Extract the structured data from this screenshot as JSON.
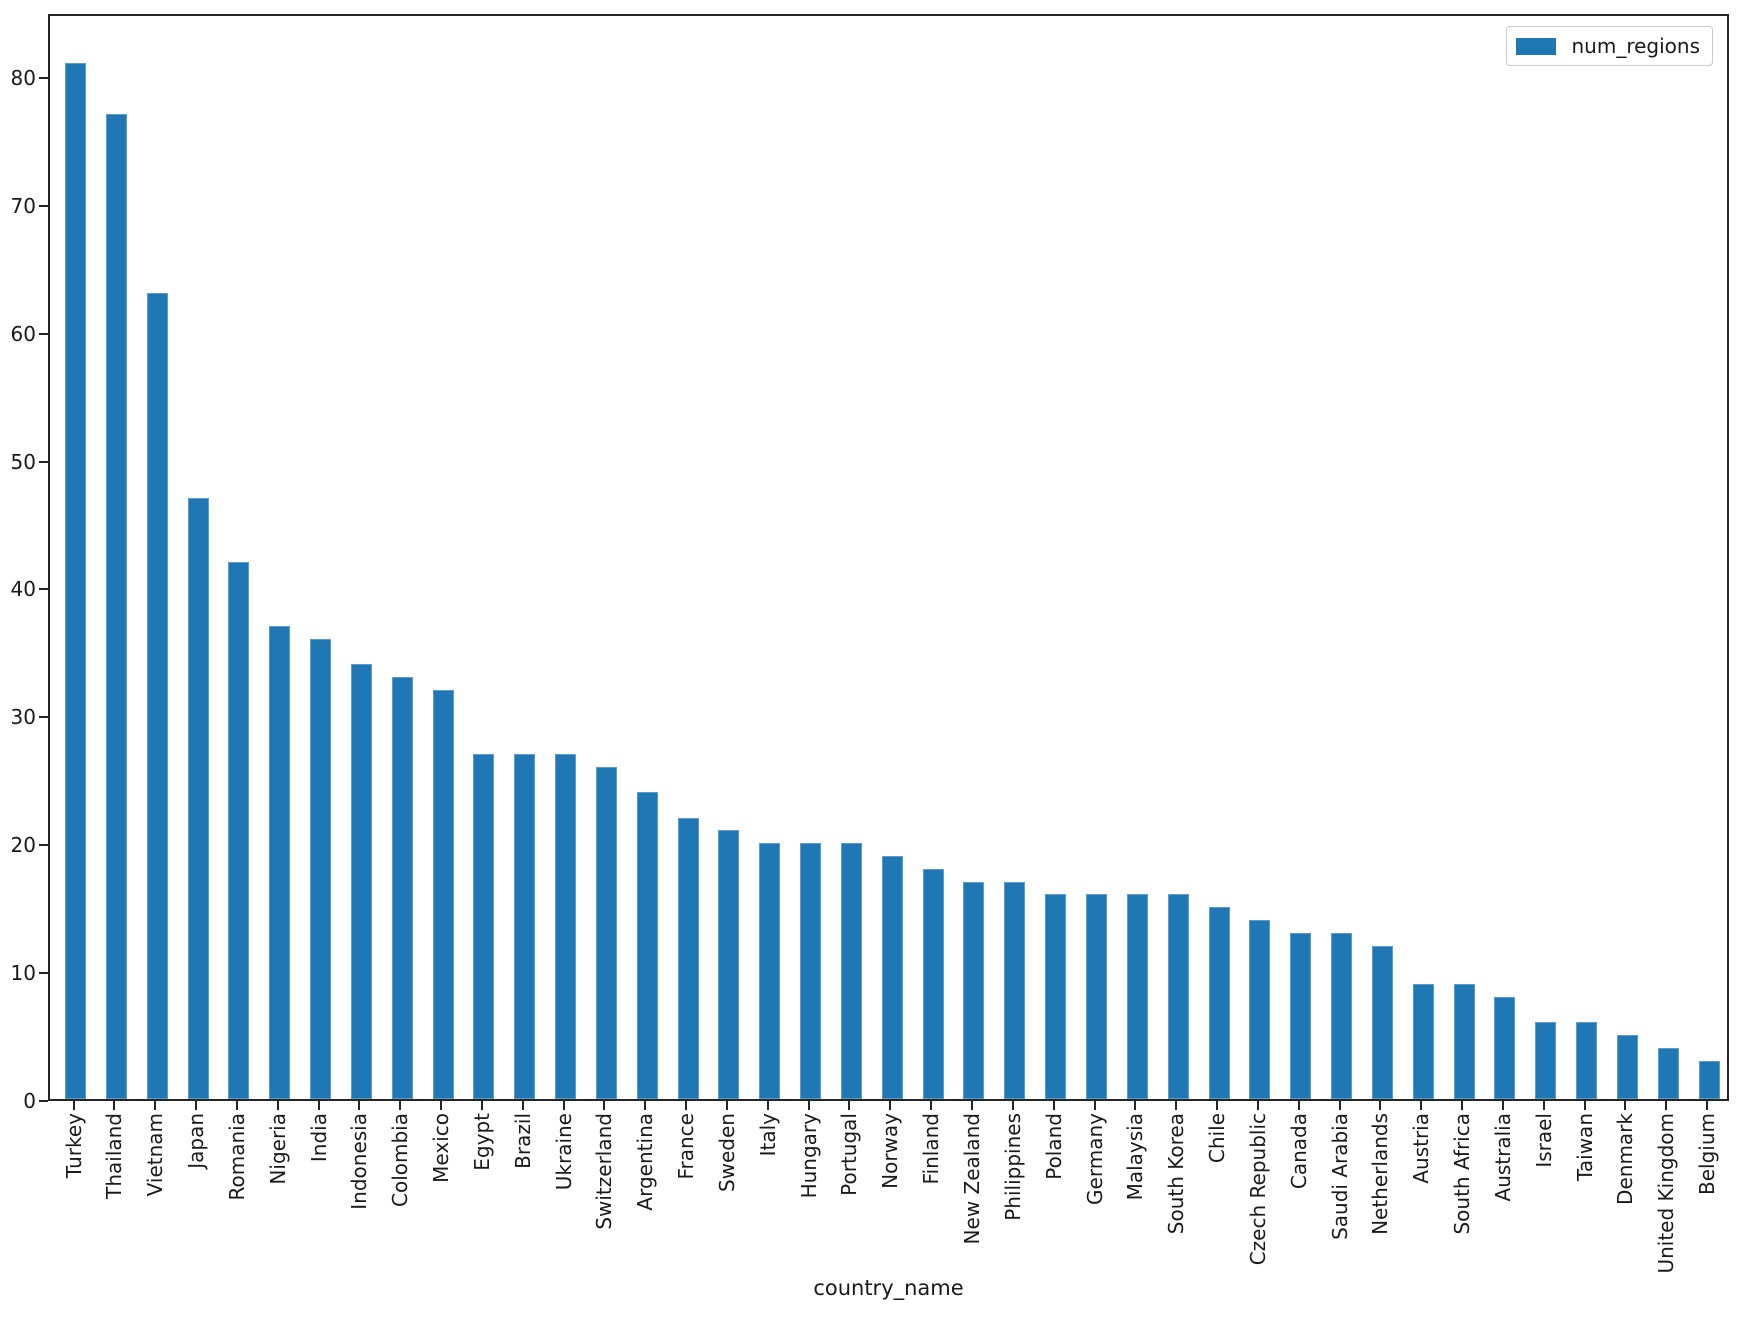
{
  "figure": {
    "background_color": "#ffffff",
    "spine_color": "#262626",
    "text_color": "#1a1a1a",
    "accent_color": "#1f77b4",
    "legend_border_color": "#c9c9c9"
  },
  "chart_data": {
    "type": "bar",
    "title": "",
    "xlabel": "country_name",
    "ylabel": "",
    "grid": false,
    "legend": {
      "label": "num_regions",
      "position": "upper right",
      "swatch_color": "#1f77b4"
    },
    "bar_color": "#1f77b4",
    "ylim": [
      0,
      85
    ],
    "yticks": [
      0,
      10,
      20,
      30,
      40,
      50,
      60,
      70,
      80
    ],
    "categories": [
      "Turkey",
      "Thailand",
      "Vietnam",
      "Japan",
      "Romania",
      "Nigeria",
      "India",
      "Indonesia",
      "Colombia",
      "Mexico",
      "Egypt",
      "Brazil",
      "Ukraine",
      "Switzerland",
      "Argentina",
      "France",
      "Sweden",
      "Italy",
      "Hungary",
      "Portugal",
      "Norway",
      "Finland",
      "New Zealand",
      "Philippines",
      "Poland",
      "Germany",
      "Malaysia",
      "South Korea",
      "Chile",
      "Czech Republic",
      "Canada",
      "Saudi Arabia",
      "Netherlands",
      "Austria",
      "South Africa",
      "Australia",
      "Israel",
      "Taiwan",
      "Denmark",
      "United Kingdom",
      "Belgium"
    ],
    "values": [
      81,
      77,
      63,
      47,
      42,
      37,
      36,
      34,
      33,
      32,
      27,
      27,
      27,
      26,
      24,
      22,
      21,
      20,
      20,
      20,
      19,
      18,
      17,
      17,
      16,
      16,
      16,
      16,
      15,
      14,
      13,
      13,
      12,
      9,
      9,
      8,
      6,
      6,
      5,
      4,
      3
    ]
  }
}
